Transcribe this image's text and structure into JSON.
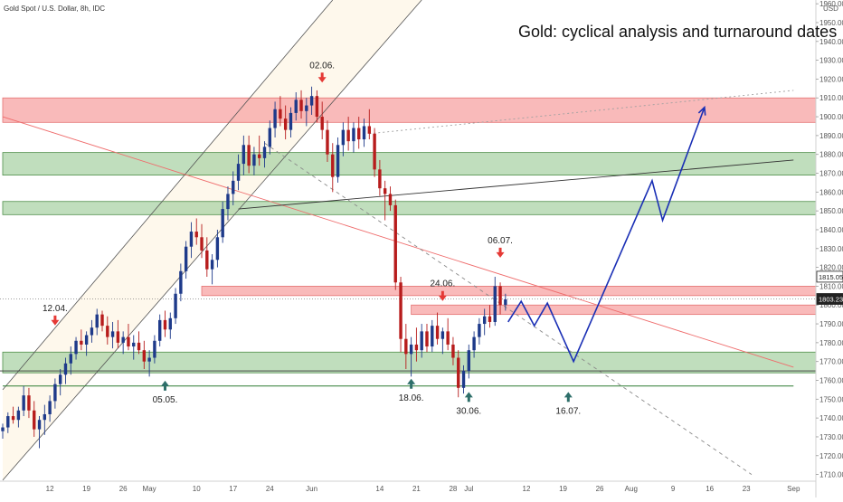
{
  "symbol_line": "Gold Spot / U.S. Dollar, 8h, IDC",
  "chart_title": "Gold: cyclical analysis and turnaround dates",
  "currency_label": "USD",
  "chart_data": {
    "type": "candlestick",
    "title": "Gold: cyclical analysis and turnaround dates",
    "y_axis": {
      "unit": "USD",
      "range": [
        1705,
        1962
      ],
      "ticks": [
        1960,
        1950,
        1940,
        1930,
        1920,
        1910,
        1900,
        1890,
        1880,
        1870,
        1860,
        1850,
        1840,
        1830,
        1820,
        1810,
        1800,
        1790,
        1780,
        1770,
        1760,
        1750,
        1740,
        1730,
        1720,
        1710
      ]
    },
    "x_axis": {
      "range_days": [
        0,
        150
      ],
      "ticks": [
        {
          "label": "12",
          "day": 9
        },
        {
          "label": "19",
          "day": 16
        },
        {
          "label": "26",
          "day": 23
        },
        {
          "label": "May",
          "day": 28
        },
        {
          "label": "10",
          "day": 37
        },
        {
          "label": "17",
          "day": 44
        },
        {
          "label": "24",
          "day": 51
        },
        {
          "label": "Jun",
          "day": 59
        },
        {
          "label": "14",
          "day": 72
        },
        {
          "label": "21",
          "day": 79
        },
        {
          "label": "28",
          "day": 86
        },
        {
          "label": "Jul",
          "day": 89
        },
        {
          "label": "12",
          "day": 100
        },
        {
          "label": "19",
          "day": 107
        },
        {
          "label": "26",
          "day": 114
        },
        {
          "label": "Aug",
          "day": 120
        },
        {
          "label": "9",
          "day": 128
        },
        {
          "label": "16",
          "day": 135
        },
        {
          "label": "23",
          "day": 142
        },
        {
          "label": "Sep",
          "day": 151
        }
      ]
    },
    "price_labels": [
      {
        "value": 1815.05,
        "text": "1815.05",
        "style": "outline"
      },
      {
        "value": 1803.23,
        "text": "1803.23",
        "style": "filled"
      }
    ],
    "zones": [
      {
        "type": "resistance",
        "from": 1897,
        "to": 1910,
        "day_start": 0
      },
      {
        "type": "support",
        "from": 1869,
        "to": 1881,
        "day_start": 0
      },
      {
        "type": "support",
        "from": 1848,
        "to": 1855,
        "day_start": 0
      },
      {
        "type": "resistance",
        "from": 1805,
        "to": 1810,
        "day_start": 38
      },
      {
        "type": "resistance",
        "from": 1795,
        "to": 1800,
        "day_start": 78
      },
      {
        "type": "support",
        "from": 1764,
        "to": 1775,
        "day_start": 0
      }
    ],
    "candles": [
      {
        "day": 0.0,
        "o": 1733,
        "h": 1737,
        "l": 1729,
        "c": 1735
      },
      {
        "day": 1.0,
        "o": 1735,
        "h": 1743,
        "l": 1732,
        "c": 1741
      },
      {
        "day": 2.0,
        "o": 1741,
        "h": 1746,
        "l": 1737,
        "c": 1739
      },
      {
        "day": 3.0,
        "o": 1739,
        "h": 1746,
        "l": 1735,
        "c": 1744
      },
      {
        "day": 4.0,
        "o": 1744,
        "h": 1757,
        "l": 1741,
        "c": 1752
      },
      {
        "day": 5.0,
        "o": 1752,
        "h": 1756,
        "l": 1740,
        "c": 1744
      },
      {
        "day": 6.0,
        "o": 1744,
        "h": 1749,
        "l": 1730,
        "c": 1734
      },
      {
        "day": 7.0,
        "o": 1734,
        "h": 1741,
        "l": 1724,
        "c": 1739
      },
      {
        "day": 8.0,
        "o": 1739,
        "h": 1747,
        "l": 1731,
        "c": 1742
      },
      {
        "day": 9.0,
        "o": 1742,
        "h": 1752,
        "l": 1738,
        "c": 1749
      },
      {
        "day": 10.0,
        "o": 1749,
        "h": 1761,
        "l": 1745,
        "c": 1758
      },
      {
        "day": 11.0,
        "o": 1758,
        "h": 1766,
        "l": 1752,
        "c": 1763
      },
      {
        "day": 12.0,
        "o": 1763,
        "h": 1772,
        "l": 1758,
        "c": 1769
      },
      {
        "day": 13.0,
        "o": 1769,
        "h": 1778,
        "l": 1763,
        "c": 1774
      },
      {
        "day": 14.0,
        "o": 1774,
        "h": 1783,
        "l": 1771,
        "c": 1781
      },
      {
        "day": 15.0,
        "o": 1781,
        "h": 1787,
        "l": 1776,
        "c": 1779
      },
      {
        "day": 16.0,
        "o": 1779,
        "h": 1786,
        "l": 1773,
        "c": 1784
      },
      {
        "day": 17.0,
        "o": 1784,
        "h": 1792,
        "l": 1780,
        "c": 1788
      },
      {
        "day": 18.0,
        "o": 1788,
        "h": 1798,
        "l": 1784,
        "c": 1795
      },
      {
        "day": 19.0,
        "o": 1795,
        "h": 1797,
        "l": 1786,
        "c": 1789
      },
      {
        "day": 20.0,
        "o": 1789,
        "h": 1794,
        "l": 1779,
        "c": 1783
      },
      {
        "day": 21.0,
        "o": 1783,
        "h": 1791,
        "l": 1777,
        "c": 1786
      },
      {
        "day": 22.0,
        "o": 1786,
        "h": 1792,
        "l": 1777,
        "c": 1780
      },
      {
        "day": 23.0,
        "o": 1780,
        "h": 1786,
        "l": 1774,
        "c": 1783
      },
      {
        "day": 24.0,
        "o": 1783,
        "h": 1790,
        "l": 1776,
        "c": 1778
      },
      {
        "day": 25.0,
        "o": 1778,
        "h": 1784,
        "l": 1771,
        "c": 1780
      },
      {
        "day": 26.0,
        "o": 1780,
        "h": 1786,
        "l": 1774,
        "c": 1776
      },
      {
        "day": 27.0,
        "o": 1776,
        "h": 1781,
        "l": 1766,
        "c": 1770
      },
      {
        "day": 28.0,
        "o": 1770,
        "h": 1776,
        "l": 1762,
        "c": 1772
      },
      {
        "day": 29.0,
        "o": 1772,
        "h": 1784,
        "l": 1769,
        "c": 1781
      },
      {
        "day": 30.0,
        "o": 1781,
        "h": 1795,
        "l": 1778,
        "c": 1792
      },
      {
        "day": 31.0,
        "o": 1792,
        "h": 1797,
        "l": 1783,
        "c": 1787
      },
      {
        "day": 32.0,
        "o": 1787,
        "h": 1796,
        "l": 1782,
        "c": 1793
      },
      {
        "day": 33.0,
        "o": 1793,
        "h": 1809,
        "l": 1790,
        "c": 1806
      },
      {
        "day": 34.0,
        "o": 1806,
        "h": 1822,
        "l": 1802,
        "c": 1818
      },
      {
        "day": 35.0,
        "o": 1818,
        "h": 1834,
        "l": 1814,
        "c": 1831
      },
      {
        "day": 36.0,
        "o": 1831,
        "h": 1844,
        "l": 1825,
        "c": 1839
      },
      {
        "day": 37.0,
        "o": 1839,
        "h": 1846,
        "l": 1832,
        "c": 1836
      },
      {
        "day": 38.0,
        "o": 1836,
        "h": 1843,
        "l": 1825,
        "c": 1829
      },
      {
        "day": 39.0,
        "o": 1829,
        "h": 1836,
        "l": 1815,
        "c": 1819
      },
      {
        "day": 40.0,
        "o": 1819,
        "h": 1827,
        "l": 1811,
        "c": 1824
      },
      {
        "day": 41.0,
        "o": 1824,
        "h": 1840,
        "l": 1820,
        "c": 1836
      },
      {
        "day": 42.0,
        "o": 1836,
        "h": 1855,
        "l": 1833,
        "c": 1851
      },
      {
        "day": 43.0,
        "o": 1851,
        "h": 1863,
        "l": 1845,
        "c": 1859
      },
      {
        "day": 44.0,
        "o": 1859,
        "h": 1871,
        "l": 1853,
        "c": 1866
      },
      {
        "day": 45.0,
        "o": 1866,
        "h": 1880,
        "l": 1861,
        "c": 1875
      },
      {
        "day": 46.0,
        "o": 1875,
        "h": 1890,
        "l": 1869,
        "c": 1885
      },
      {
        "day": 47.0,
        "o": 1885,
        "h": 1890,
        "l": 1870,
        "c": 1874
      },
      {
        "day": 48.0,
        "o": 1874,
        "h": 1884,
        "l": 1869,
        "c": 1880
      },
      {
        "day": 49.0,
        "o": 1880,
        "h": 1890,
        "l": 1874,
        "c": 1878
      },
      {
        "day": 50.0,
        "o": 1878,
        "h": 1887,
        "l": 1873,
        "c": 1884
      },
      {
        "day": 51.0,
        "o": 1884,
        "h": 1898,
        "l": 1880,
        "c": 1894
      },
      {
        "day": 52.0,
        "o": 1894,
        "h": 1908,
        "l": 1889,
        "c": 1904
      },
      {
        "day": 53.0,
        "o": 1904,
        "h": 1911,
        "l": 1895,
        "c": 1899
      },
      {
        "day": 54.0,
        "o": 1899,
        "h": 1906,
        "l": 1888,
        "c": 1893
      },
      {
        "day": 55.0,
        "o": 1893,
        "h": 1905,
        "l": 1889,
        "c": 1902
      },
      {
        "day": 56.0,
        "o": 1902,
        "h": 1913,
        "l": 1898,
        "c": 1909
      },
      {
        "day": 57.0,
        "o": 1909,
        "h": 1914,
        "l": 1899,
        "c": 1903
      },
      {
        "day": 58.0,
        "o": 1903,
        "h": 1910,
        "l": 1895,
        "c": 1906
      },
      {
        "day": 59.0,
        "o": 1906,
        "h": 1916,
        "l": 1901,
        "c": 1911
      },
      {
        "day": 60.0,
        "o": 1911,
        "h": 1914,
        "l": 1897,
        "c": 1900
      },
      {
        "day": 61.0,
        "o": 1900,
        "h": 1908,
        "l": 1888,
        "c": 1893
      },
      {
        "day": 62.0,
        "o": 1893,
        "h": 1898,
        "l": 1876,
        "c": 1880
      },
      {
        "day": 63.0,
        "o": 1880,
        "h": 1886,
        "l": 1860,
        "c": 1868
      },
      {
        "day": 64.0,
        "o": 1868,
        "h": 1889,
        "l": 1865,
        "c": 1885
      },
      {
        "day": 65.0,
        "o": 1885,
        "h": 1897,
        "l": 1879,
        "c": 1893
      },
      {
        "day": 66.0,
        "o": 1893,
        "h": 1900,
        "l": 1882,
        "c": 1887
      },
      {
        "day": 67.0,
        "o": 1887,
        "h": 1897,
        "l": 1881,
        "c": 1894
      },
      {
        "day": 68.0,
        "o": 1894,
        "h": 1900,
        "l": 1883,
        "c": 1888
      },
      {
        "day": 69.0,
        "o": 1888,
        "h": 1899,
        "l": 1884,
        "c": 1895
      },
      {
        "day": 70.0,
        "o": 1895,
        "h": 1904,
        "l": 1888,
        "c": 1891
      },
      {
        "day": 71.0,
        "o": 1891,
        "h": 1894,
        "l": 1868,
        "c": 1872
      },
      {
        "day": 72.0,
        "o": 1872,
        "h": 1877,
        "l": 1858,
        "c": 1862
      },
      {
        "day": 73.0,
        "o": 1862,
        "h": 1866,
        "l": 1845,
        "c": 1859
      },
      {
        "day": 74.0,
        "o": 1859,
        "h": 1863,
        "l": 1850,
        "c": 1853
      },
      {
        "day": 75.0,
        "o": 1853,
        "h": 1856,
        "l": 1808,
        "c": 1812
      },
      {
        "day": 76.0,
        "o": 1812,
        "h": 1815,
        "l": 1775,
        "c": 1782
      },
      {
        "day": 77.0,
        "o": 1782,
        "h": 1790,
        "l": 1766,
        "c": 1774
      },
      {
        "day": 78.0,
        "o": 1774,
        "h": 1783,
        "l": 1762,
        "c": 1779
      },
      {
        "day": 79.0,
        "o": 1779,
        "h": 1788,
        "l": 1770,
        "c": 1776
      },
      {
        "day": 80.0,
        "o": 1776,
        "h": 1790,
        "l": 1772,
        "c": 1786
      },
      {
        "day": 81.0,
        "o": 1786,
        "h": 1790,
        "l": 1775,
        "c": 1778
      },
      {
        "day": 82.0,
        "o": 1778,
        "h": 1792,
        "l": 1775,
        "c": 1789
      },
      {
        "day": 83.0,
        "o": 1789,
        "h": 1796,
        "l": 1779,
        "c": 1782
      },
      {
        "day": 84.0,
        "o": 1782,
        "h": 1788,
        "l": 1774,
        "c": 1786
      },
      {
        "day": 85.0,
        "o": 1786,
        "h": 1793,
        "l": 1776,
        "c": 1779
      },
      {
        "day": 86.0,
        "o": 1779,
        "h": 1783,
        "l": 1768,
        "c": 1772
      },
      {
        "day": 87.0,
        "o": 1772,
        "h": 1776,
        "l": 1751,
        "c": 1756
      },
      {
        "day": 88.0,
        "o": 1756,
        "h": 1768,
        "l": 1753,
        "c": 1765
      },
      {
        "day": 89.0,
        "o": 1765,
        "h": 1779,
        "l": 1761,
        "c": 1776
      },
      {
        "day": 90.0,
        "o": 1776,
        "h": 1786,
        "l": 1772,
        "c": 1783
      },
      {
        "day": 91.0,
        "o": 1783,
        "h": 1793,
        "l": 1779,
        "c": 1790
      },
      {
        "day": 92.0,
        "o": 1790,
        "h": 1798,
        "l": 1784,
        "c": 1794
      },
      {
        "day": 93.0,
        "o": 1794,
        "h": 1800,
        "l": 1788,
        "c": 1791
      },
      {
        "day": 94.0,
        "o": 1791,
        "h": 1815,
        "l": 1789,
        "c": 1810
      },
      {
        "day": 95.0,
        "o": 1810,
        "h": 1812,
        "l": 1795,
        "c": 1800
      },
      {
        "day": 96.0,
        "o": 1800,
        "h": 1806,
        "l": 1797,
        "c": 1803
      }
    ],
    "projection_path": [
      {
        "day": 96.5,
        "value": 1791
      },
      {
        "day": 99,
        "value": 1802
      },
      {
        "day": 101.5,
        "value": 1789
      },
      {
        "day": 104,
        "value": 1801
      },
      {
        "day": 109,
        "value": 1770
      },
      {
        "day": 124,
        "value": 1866
      },
      {
        "day": 126,
        "value": 1845
      },
      {
        "day": 134,
        "value": 1905
      }
    ],
    "trend_lines": [
      {
        "style": "channel-lower",
        "from": {
          "day": 0,
          "value": 1707
        },
        "to": {
          "day": 80,
          "value": 1962
        }
      },
      {
        "style": "channel-upper",
        "from": {
          "day": 0,
          "value": 1755
        },
        "to": {
          "day": 63,
          "value": 1962
        }
      },
      {
        "style": "red-trend",
        "from": {
          "day": 0,
          "value": 1900
        },
        "to": {
          "day": 151,
          "value": 1767
        }
      },
      {
        "style": "rising-dark",
        "from": {
          "day": 45,
          "value": 1851
        },
        "to": {
          "day": 151,
          "value": 1877
        }
      },
      {
        "style": "dashed-falling",
        "from": {
          "day": 50,
          "value": 1886
        },
        "to": {
          "day": 143,
          "value": 1710
        }
      },
      {
        "style": "dotted-rising",
        "from": {
          "day": 70,
          "value": 1891
        },
        "to": {
          "day": 151,
          "value": 1914
        }
      },
      {
        "style": "level",
        "from": {
          "day": 0,
          "value": 1757
        },
        "to": {
          "day": 151,
          "value": 1757
        }
      }
    ],
    "cycle_markers": [
      {
        "label": "12.04.",
        "day": 10,
        "type": "down",
        "value": 1793
      },
      {
        "label": "05.05.",
        "day": 31,
        "type": "up",
        "value": 1756
      },
      {
        "label": "02.06.",
        "day": 61,
        "type": "down",
        "value": 1922
      },
      {
        "label": "18.06.",
        "day": 78,
        "type": "up",
        "value": 1757
      },
      {
        "label": "24.06.",
        "day": 84,
        "type": "down",
        "value": 1806
      },
      {
        "label": "30.06.",
        "day": 89,
        "type": "up",
        "value": 1750
      },
      {
        "label": "06.07.",
        "day": 95,
        "type": "down",
        "value": 1829
      },
      {
        "label": "16.07.",
        "day": 108,
        "type": "up",
        "value": 1750
      }
    ]
  }
}
